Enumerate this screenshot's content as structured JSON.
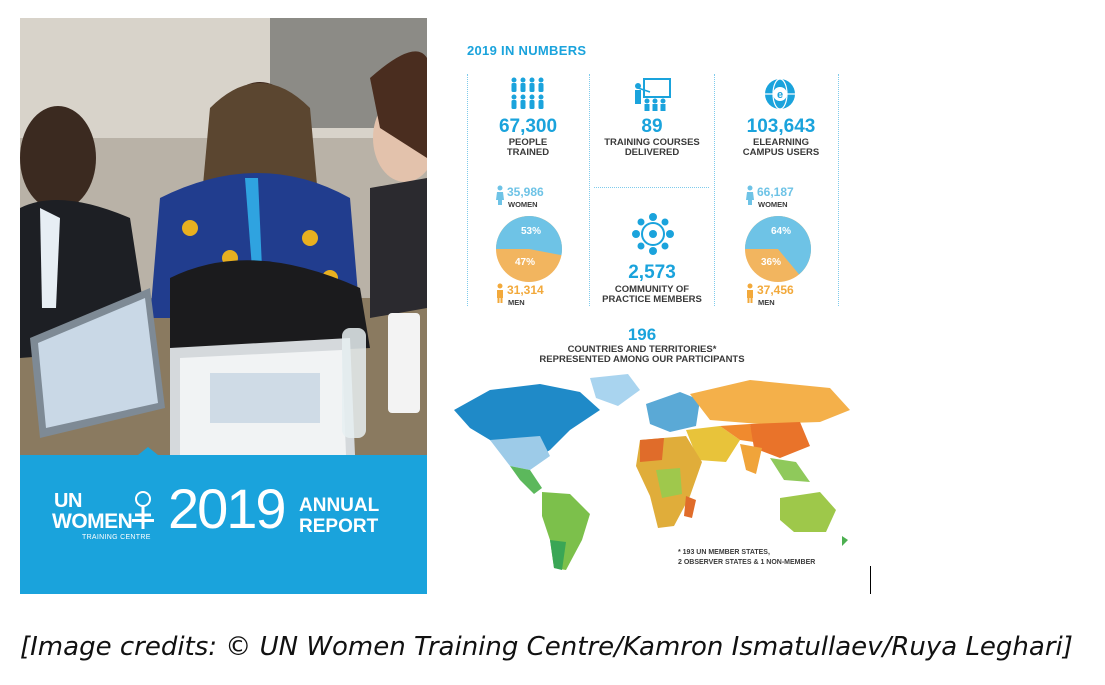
{
  "cover": {
    "logo_un": "UN",
    "logo_women": "WOMEN",
    "logo_sub": "TRAINING CENTRE",
    "year": "2019",
    "title_line1": "ANNUAL",
    "title_line2": "REPORT",
    "band_color": "#1aa3dc"
  },
  "infographic": {
    "title": "2019 IN NUMBERS",
    "accent_color": "#1aa3dc",
    "stats": [
      {
        "value": "67,300",
        "line1": "PEOPLE",
        "line2": "TRAINED",
        "icon": "people-group-icon"
      },
      {
        "value": "89",
        "line1": "TRAINING COURSES",
        "line2": "DELIVERED",
        "icon": "classroom-icon"
      },
      {
        "value": "103,643",
        "line1": "ELEARNING",
        "line2": "CAMPUS USERS",
        "icon": "elearning-globe-icon"
      }
    ],
    "trained_split": {
      "women_value": "35,986",
      "women_label": "WOMEN",
      "men_value": "31,314",
      "men_label": "MEN",
      "women_pct": "53%",
      "men_pct": "47%",
      "women_share": 0.53
    },
    "campus_split": {
      "women_value": "66,187",
      "women_label": "WOMEN",
      "men_value": "37,456",
      "men_label": "MEN",
      "women_pct": "64%",
      "men_pct": "36%",
      "women_share": 0.64
    },
    "community": {
      "value": "2,573",
      "line1": "COMMUNITY OF",
      "line2": "PRACTICE MEMBERS",
      "icon": "community-network-icon"
    },
    "countries": {
      "value": "196",
      "line1": "COUNTRIES AND TERRITORIES*",
      "line2": "REPRESENTED AMONG OUR PARTICIPANTS"
    },
    "footnote": {
      "line1": "* 193 UN MEMBER STATES,",
      "line2": "2 OBSERVER STATES & 1 NON-MEMBER"
    },
    "colors": {
      "women": "#6ec3e6",
      "men": "#f2b55f"
    }
  },
  "credits": "[Image credits: © UN Women Training Centre/Kamron Ismatullaev/Ruya Leghari]"
}
